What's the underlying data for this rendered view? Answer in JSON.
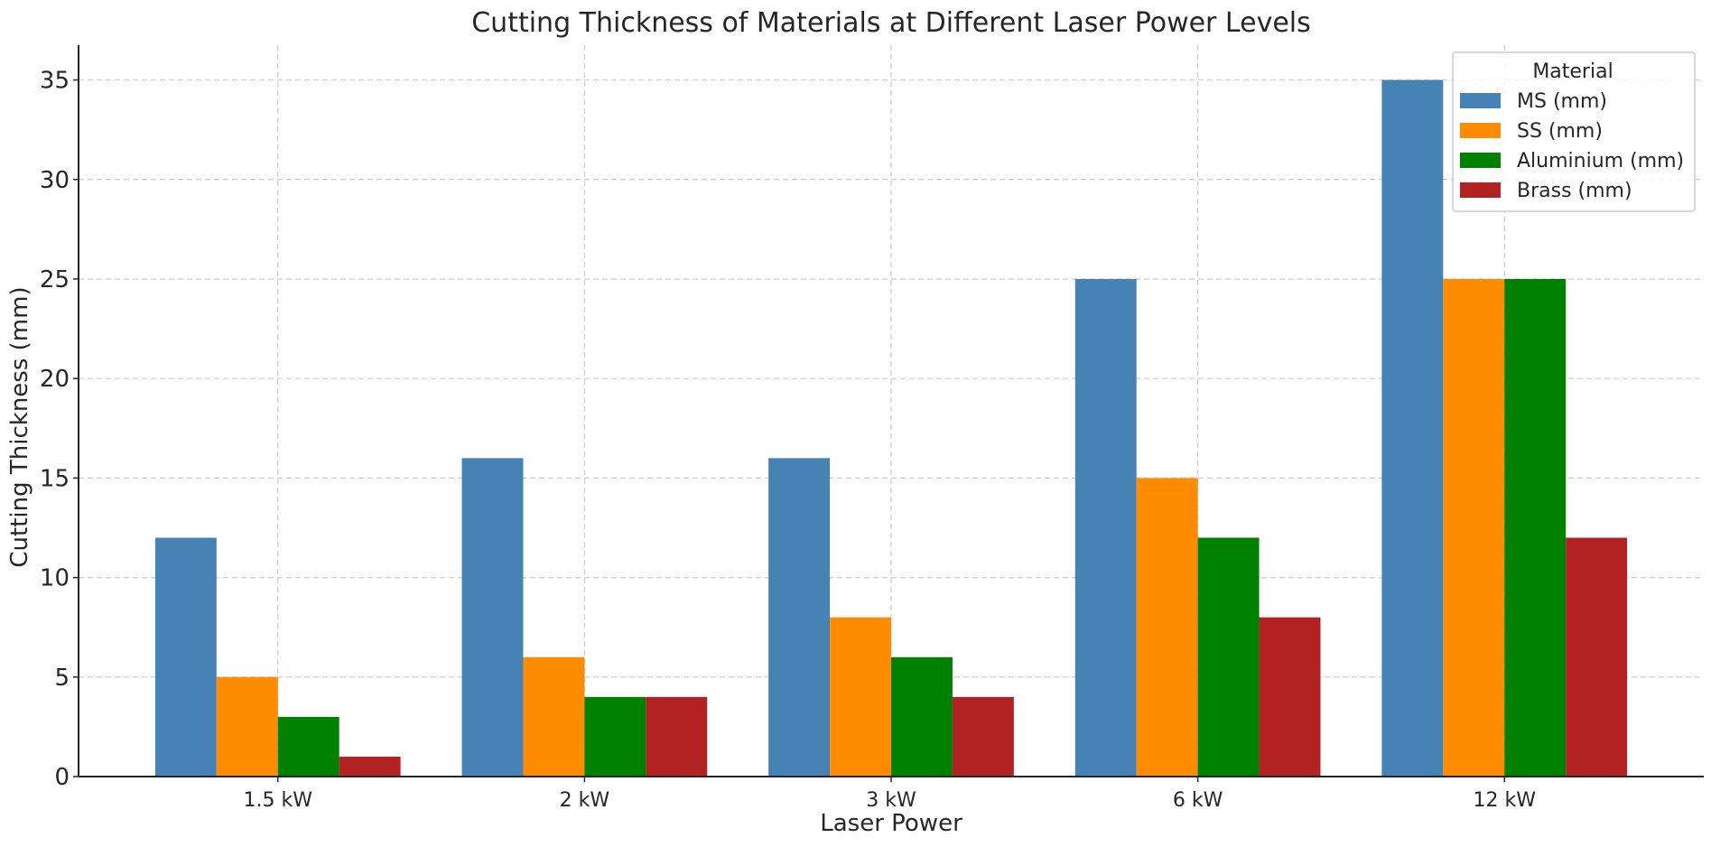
{
  "chart_data": {
    "type": "bar",
    "title": "Cutting Thickness of Materials at Different Laser Power Levels",
    "xlabel": "Laser Power",
    "ylabel": "Cutting Thickness (mm)",
    "categories": [
      "1.5 kW",
      "2 kW",
      "3 kW",
      "6 kW",
      "12 kW"
    ],
    "series": [
      {
        "name": "MS (mm)",
        "color": "#4682b4",
        "values": [
          12,
          16,
          16,
          25,
          35
        ]
      },
      {
        "name": "SS (mm)",
        "color": "#ff8c00",
        "values": [
          5,
          6,
          8,
          15,
          25
        ]
      },
      {
        "name": "Aluminium (mm)",
        "color": "#008000",
        "values": [
          3,
          4,
          6,
          12,
          25
        ]
      },
      {
        "name": "Brass (mm)",
        "color": "#b22222",
        "values": [
          1,
          4,
          4,
          8,
          12
        ]
      }
    ],
    "ylim": [
      0,
      36.75
    ],
    "yticks": [
      0,
      5,
      10,
      15,
      20,
      25,
      30,
      35
    ],
    "grid": true,
    "legend": {
      "title": "Material",
      "position": "top-right"
    }
  }
}
